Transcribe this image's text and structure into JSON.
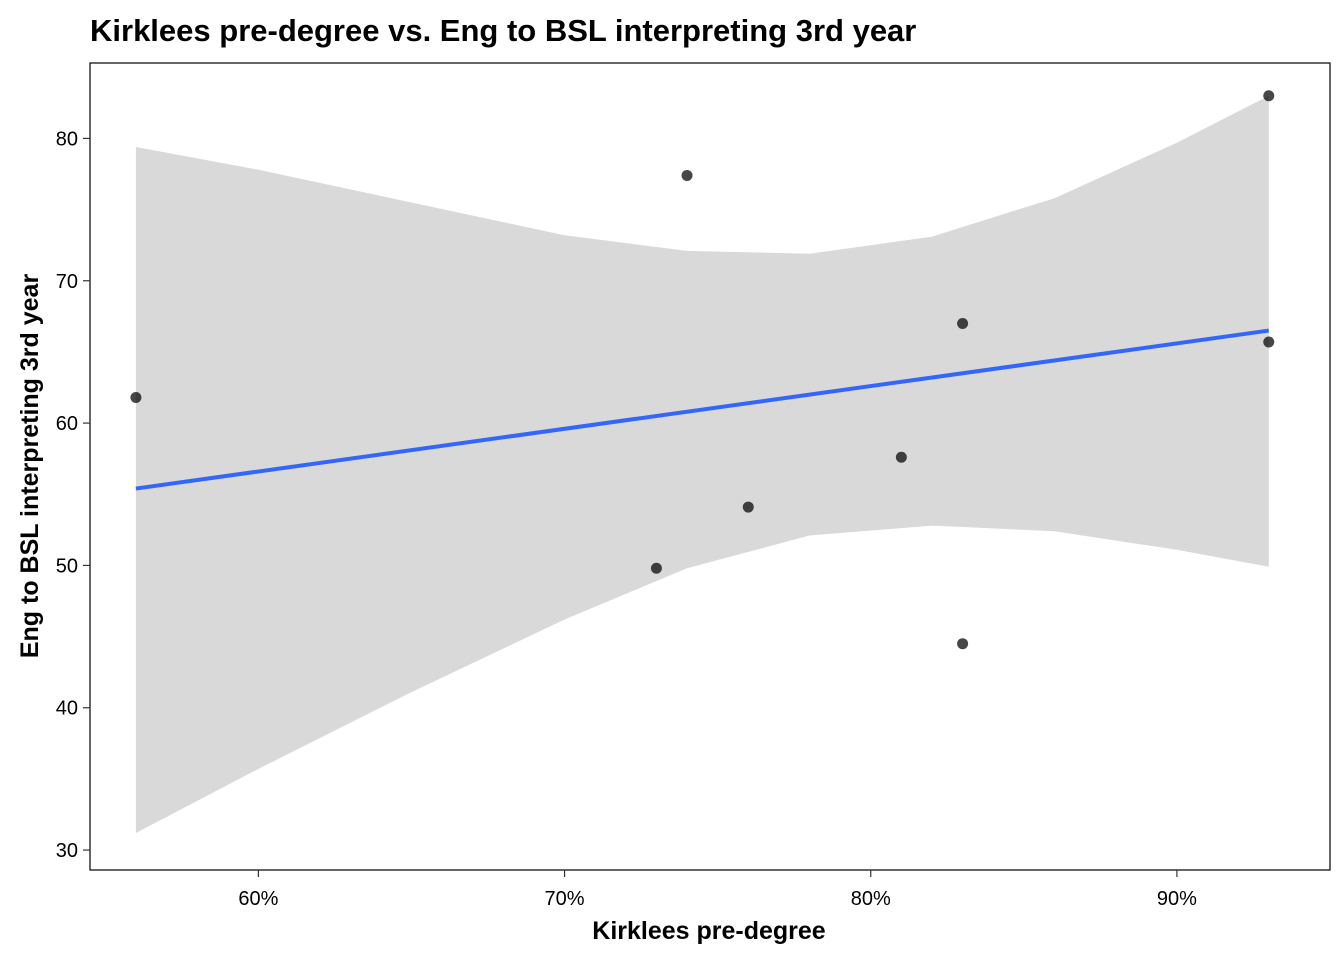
{
  "chart_data": {
    "type": "scatter",
    "title": "Kirklees pre-degree vs. Eng to BSL interpreting 3rd year",
    "xlabel": "Kirklees pre-degree",
    "ylabel": "Eng to BSL interpreting 3rd year",
    "xlim": [
      0.545,
      0.95
    ],
    "ylim": [
      28.6,
      85.3
    ],
    "x_ticks": [
      0.6,
      0.7,
      0.8,
      0.9
    ],
    "x_tick_labels": [
      "60%",
      "70%",
      "80%",
      "90%"
    ],
    "y_ticks": [
      30,
      40,
      50,
      60,
      70,
      80
    ],
    "y_tick_labels": [
      "30",
      "40",
      "50",
      "60",
      "70",
      "80"
    ],
    "grid": false,
    "points": [
      {
        "x": 0.56,
        "y": 61.8
      },
      {
        "x": 0.73,
        "y": 49.8
      },
      {
        "x": 0.74,
        "y": 77.4
      },
      {
        "x": 0.76,
        "y": 54.1
      },
      {
        "x": 0.81,
        "y": 57.6
      },
      {
        "x": 0.83,
        "y": 67.0
      },
      {
        "x": 0.83,
        "y": 44.5
      },
      {
        "x": 0.93,
        "y": 83.0
      },
      {
        "x": 0.93,
        "y": 65.7
      }
    ],
    "fit_line": {
      "method": "linear",
      "color": "#3366FF",
      "x": [
        0.56,
        0.93
      ],
      "y": [
        55.4,
        66.5
      ]
    },
    "confidence_band": {
      "color": "#D9D9D9",
      "x": [
        0.56,
        0.6,
        0.65,
        0.7,
        0.74,
        0.78,
        0.82,
        0.86,
        0.9,
        0.93
      ],
      "upper": [
        79.4,
        77.8,
        75.5,
        73.2,
        72.1,
        71.9,
        73.1,
        75.8,
        79.7,
        83.0
      ],
      "lower": [
        31.2,
        35.7,
        41.1,
        46.2,
        49.8,
        52.1,
        52.8,
        52.4,
        51.1,
        49.9
      ]
    },
    "point_color": "#000000"
  }
}
